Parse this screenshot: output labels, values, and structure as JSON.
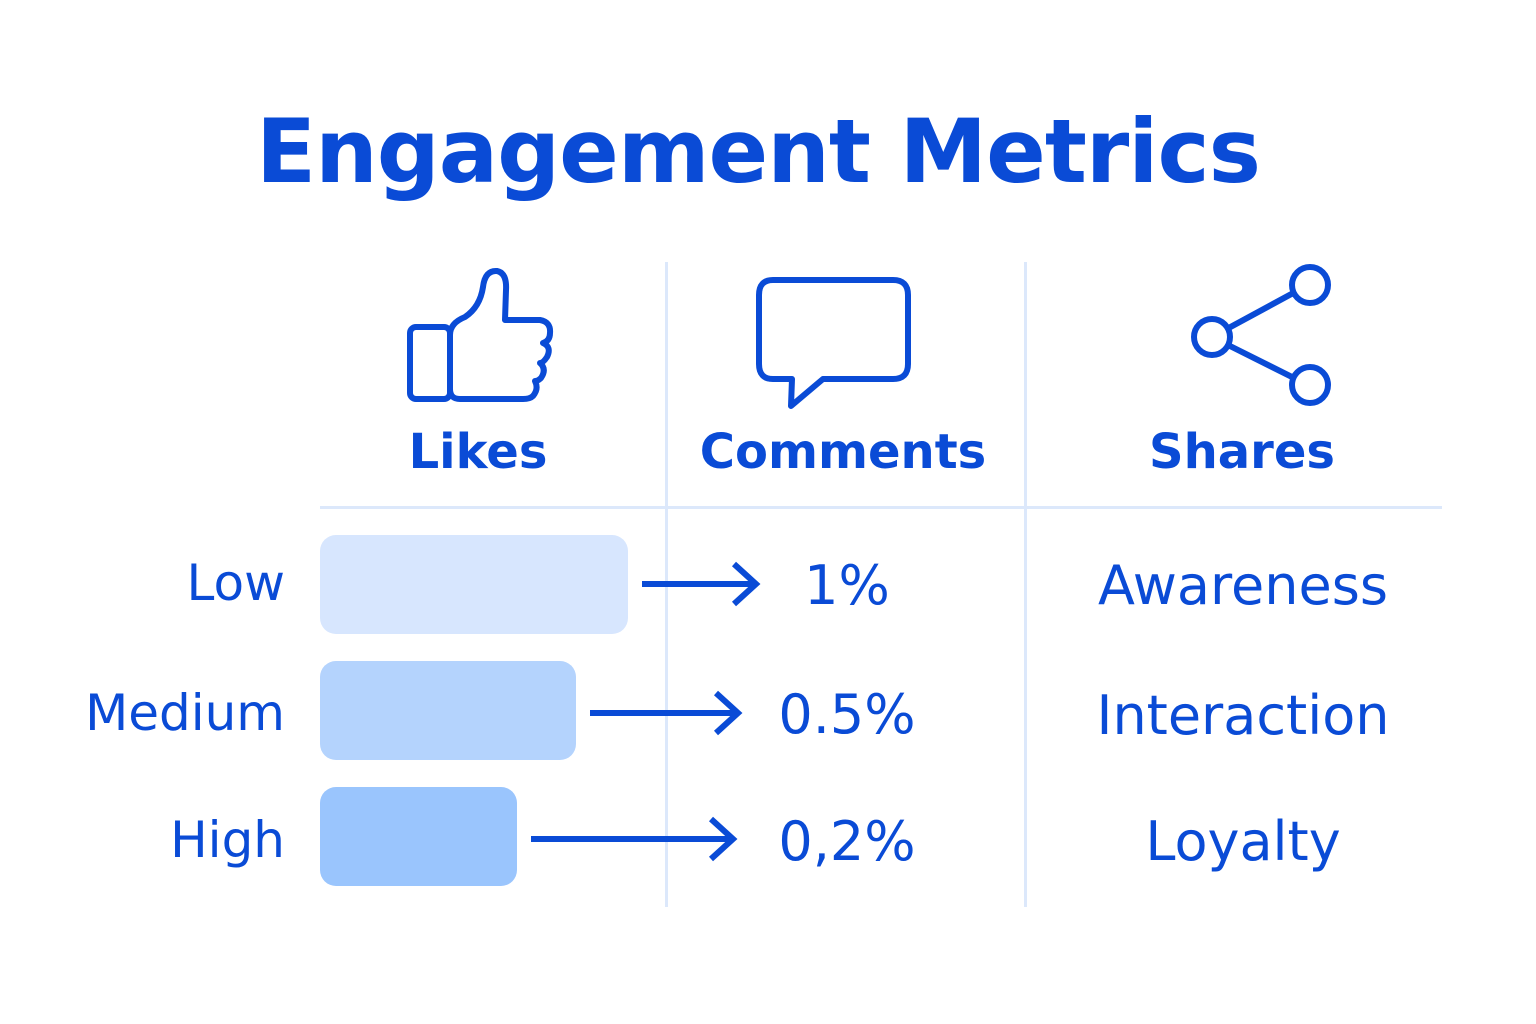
{
  "title": "Engagement Metrics",
  "columns": [
    {
      "label": "Likes",
      "icon": "thumbs-up-icon"
    },
    {
      "label": "Comments",
      "icon": "speech-bubble-icon"
    },
    {
      "label": "Shares",
      "icon": "share-icon"
    }
  ],
  "rows": [
    {
      "level": "Low",
      "rate": "1%",
      "outcome": "Awareness",
      "bar_fraction": 1.0,
      "bar_color": "#d7e6fe"
    },
    {
      "level": "Medium",
      "rate": "0.5%",
      "outcome": "Interaction",
      "bar_fraction": 0.83,
      "bar_color": "#b4d3fd"
    },
    {
      "level": "High",
      "rate": "0,2%",
      "outcome": "Loyalty",
      "bar_fraction": 0.64,
      "bar_color": "#9ac5fd"
    }
  ],
  "colors": {
    "accent": "#0a4bd6",
    "divider": "#dce8fb"
  }
}
